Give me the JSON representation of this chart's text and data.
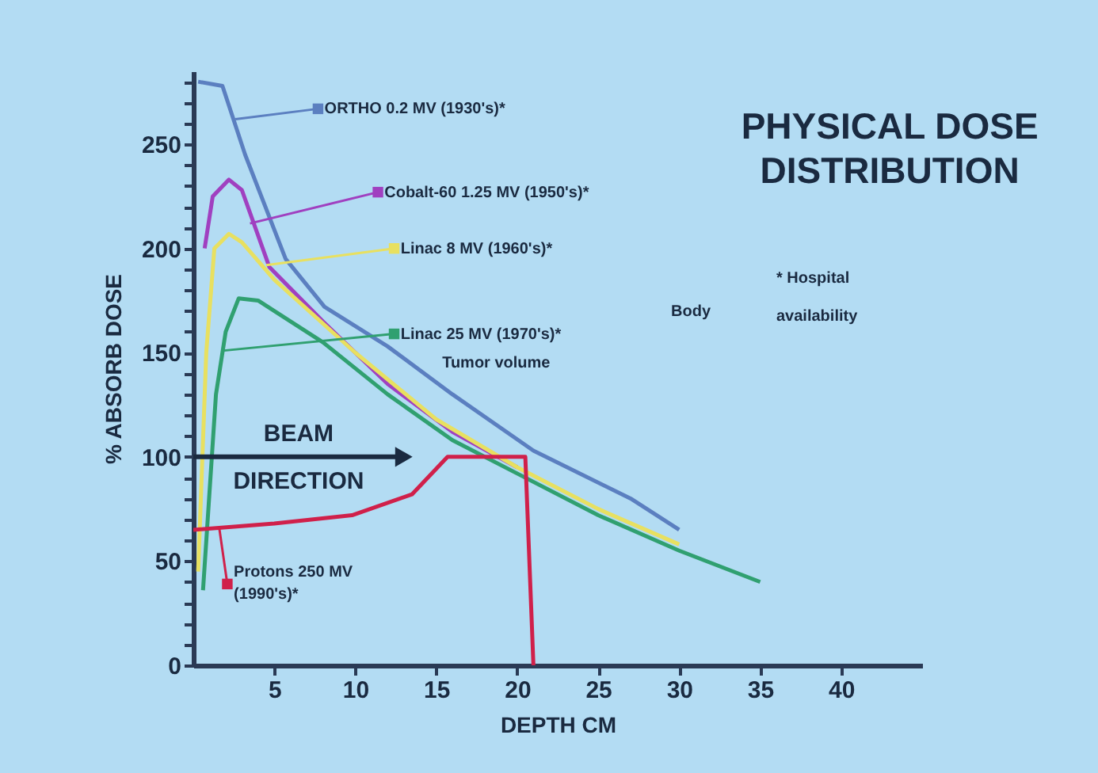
{
  "chart_data": {
    "type": "line",
    "title": "PHYSICAL DOSE DISTRIBUTION",
    "xlabel": "DEPTH CM",
    "ylabel": "% ABSORB DOSE",
    "xlim": [
      0,
      45
    ],
    "ylim": [
      0,
      285
    ],
    "xticks": [
      5,
      10,
      15,
      20,
      25,
      30,
      35,
      40
    ],
    "yticks": [
      0,
      {
        "value": 10,
        "label": null
      },
      {
        "value": 20,
        "label": null
      },
      {
        "value": 30,
        "label": null
      },
      {
        "value": 40,
        "label": null
      },
      50,
      {
        "value": 60,
        "label": null
      },
      {
        "value": 70,
        "label": null
      },
      {
        "value": 80,
        "label": null
      },
      {
        "value": 90,
        "label": null
      },
      100,
      {
        "value": 110,
        "label": null
      },
      {
        "value": 120,
        "label": null
      },
      {
        "value": 130,
        "label": null
      },
      {
        "value": 140,
        "label": null
      },
      150,
      {
        "value": 160,
        "label": null
      },
      {
        "value": 170,
        "label": null
      },
      {
        "value": 180,
        "label": null
      },
      {
        "value": 190,
        "label": null
      },
      200,
      {
        "value": 210,
        "label": null
      },
      {
        "value": 220,
        "label": null
      },
      {
        "value": 230,
        "label": null
      },
      {
        "value": 240,
        "label": null
      },
      250,
      {
        "value": 260,
        "label": null
      },
      {
        "value": 270,
        "label": null
      },
      {
        "value": 280,
        "label": null
      }
    ],
    "grid": false,
    "legend": "top left",
    "marker": "none",
    "line_style": "solid",
    "series": [
      {
        "name": "ORTHO  0.2 MV (1930's)*",
        "color": "#5b7fc0",
        "x": [
          0.3,
          1.8,
          3.2,
          5.7,
          8.1,
          12,
          16,
          21,
          27,
          30
        ],
        "values": [
          280,
          278,
          245,
          195,
          172,
          153,
          130,
          103,
          80,
          65
        ]
      },
      {
        "name": "Cobalt-60  1.25 MV (1950's)*",
        "color": "#a040c0",
        "x": [
          0.7,
          1.2,
          2.2,
          3,
          4.7,
          8,
          12,
          16,
          20
        ],
        "values": [
          200,
          225,
          233,
          228,
          191,
          165,
          135,
          112,
          95
        ]
      },
      {
        "name": "Linac  8 MV (1960's)*",
        "color": "#e8e060",
        "x": [
          0.3,
          0.8,
          1.3,
          2.2,
          3,
          5,
          10,
          15,
          20,
          25,
          30
        ],
        "values": [
          45,
          150,
          200,
          207,
          203,
          185,
          150,
          118,
          95,
          75,
          58
        ]
      },
      {
        "name": "Linac  25 MV (1970's)*",
        "color": "#30a070",
        "x": [
          0.6,
          1.4,
          2,
          2.8,
          4,
          5,
          8,
          12,
          16,
          20,
          25,
          30,
          35
        ],
        "values": [
          36,
          130,
          160,
          176,
          175,
          170,
          155,
          130,
          108,
          92,
          72,
          55,
          40
        ]
      },
      {
        "name": "Protons  250 MV (1990's)*",
        "color": "#d0204a",
        "x": [
          0,
          5,
          9.8,
          13.5,
          15.7,
          20.5,
          21
        ],
        "values": [
          65,
          68,
          72,
          82,
          100,
          100,
          0
        ]
      }
    ],
    "annotations": [
      "BEAM DIRECTION",
      "Tumor volume",
      "Body",
      "* Hospital availability"
    ]
  }
}
